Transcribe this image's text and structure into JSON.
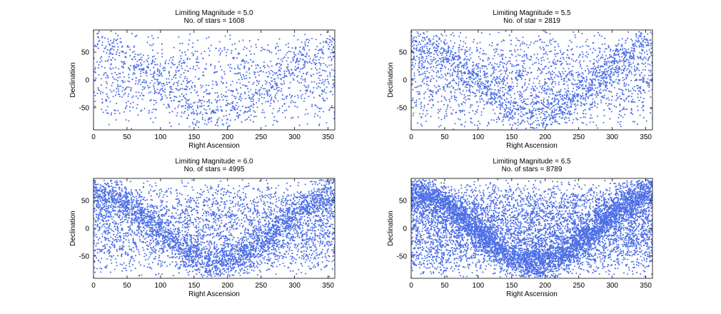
{
  "chart_data": [
    {
      "type": "scatter",
      "title": [
        "Limiting Magnitude = 5.0",
        "No. of stars = 1608"
      ],
      "xlabel": "Right Ascension",
      "ylabel": "Declination",
      "xlim": [
        0,
        360
      ],
      "ylim": [
        -90,
        90
      ],
      "xticks": [
        0,
        50,
        100,
        150,
        200,
        250,
        300,
        350
      ],
      "yticks": [
        50,
        0,
        -50
      ],
      "n_points": 1608,
      "color": "#4d6fe6",
      "grid": false
    },
    {
      "type": "scatter",
      "title": [
        "Limiting Magnitude = 5.5",
        "No. of star = 2819"
      ],
      "xlabel": "Right Ascension",
      "ylabel": "Declination",
      "xlim": [
        0,
        360
      ],
      "ylim": [
        -90,
        90
      ],
      "xticks": [
        0,
        50,
        100,
        150,
        200,
        250,
        300,
        350
      ],
      "yticks": [
        50,
        0,
        -50
      ],
      "n_points": 2819,
      "color": "#4d6fe6",
      "grid": false
    },
    {
      "type": "scatter",
      "title": [
        "Limiting Magnitude = 6.0",
        "No. of stars = 4995"
      ],
      "xlabel": "Right Ascension",
      "ylabel": "Declination",
      "xlim": [
        0,
        360
      ],
      "ylim": [
        -90,
        90
      ],
      "xticks": [
        0,
        50,
        100,
        150,
        200,
        250,
        300,
        350
      ],
      "yticks": [
        50,
        0,
        -50
      ],
      "n_points": 4995,
      "color": "#4d6fe6",
      "grid": false
    },
    {
      "type": "scatter",
      "title": [
        "Limiting Magnitude = 6.5",
        "No. of stars = 8789"
      ],
      "xlabel": "Right Ascension",
      "ylabel": "Declination",
      "xlim": [
        0,
        360
      ],
      "ylim": [
        -90,
        90
      ],
      "xticks": [
        0,
        50,
        100,
        150,
        200,
        250,
        300,
        350
      ],
      "yticks": [
        50,
        0,
        -50
      ],
      "n_points": 8789,
      "color": "#4d6fe6",
      "grid": false
    }
  ]
}
